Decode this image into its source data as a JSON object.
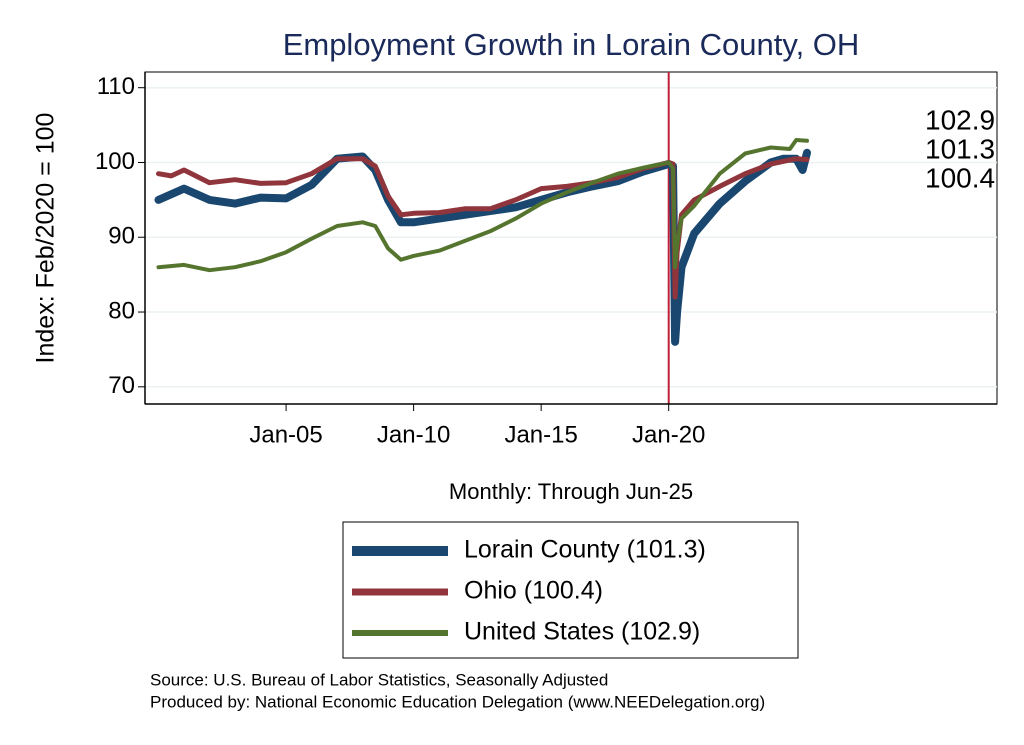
{
  "chart_data": {
    "type": "line",
    "title": "Employment Growth in Lorain  County, OH",
    "y_label": "Index: Feb/2020 = 100",
    "x_label": "Monthly: Through Jun-25",
    "source": [
      "Source: U.S. Bureau of Labor Statistics, Seasonally Adjusted",
      "Produced by: National Economic Education Delegation (www.NEEDelegation.org)"
    ],
    "xlim": [
      1999.47,
      2032.87
    ],
    "xticks": [
      {
        "value": 2005,
        "label": "Jan-05"
      },
      {
        "value": 2010,
        "label": "Jan-10"
      },
      {
        "value": 2015,
        "label": "Jan-15"
      },
      {
        "value": 2020,
        "label": "Jan-20"
      }
    ],
    "ylim": [
      67.7,
      112.1
    ],
    "yticks": [
      70,
      80,
      90,
      100,
      110
    ],
    "grid": true,
    "vline": {
      "value": 2020,
      "color": "#c0213a"
    },
    "series": [
      {
        "name": "Lorain  County (101.3)",
        "color": "#1a476f",
        "width": 8,
        "end_label": 101.3,
        "x": [
          2000,
          2001,
          2002,
          2003,
          2004,
          2005,
          2006,
          2007,
          2008,
          2008.5,
          2009,
          2009.5,
          2010,
          2011,
          2012,
          2013,
          2014,
          2015,
          2016,
          2017,
          2018,
          2019,
          2020,
          2020.17,
          2020.25,
          2020.33,
          2020.5,
          2021,
          2022,
          2023,
          2024,
          2024.5,
          2025,
          2025.25,
          2025.42
        ],
        "values": [
          95,
          96.5,
          95,
          94.5,
          95.3,
          95.2,
          97,
          100.5,
          100.8,
          99,
          95,
          92,
          92,
          92.5,
          93,
          93.5,
          94,
          95,
          96,
          96.8,
          97.5,
          98.8,
          99.8,
          99.5,
          76,
          80,
          86,
          90.5,
          94.5,
          97.5,
          100,
          100.5,
          100.5,
          99,
          101.3
        ]
      },
      {
        "name": "Ohio (100.4)",
        "color": "#90353b",
        "width": 5,
        "end_label": 100.4,
        "x": [
          2000,
          2000.5,
          2001,
          2002,
          2003,
          2004,
          2005,
          2006,
          2007,
          2008,
          2008.5,
          2009,
          2009.5,
          2010,
          2011,
          2012,
          2013,
          2014,
          2015,
          2016,
          2017,
          2018,
          2019,
          2020,
          2020.17,
          2020.25,
          2020.33,
          2020.5,
          2021,
          2022,
          2023,
          2024,
          2025,
          2025.42
        ],
        "values": [
          98.5,
          98.2,
          99,
          97.3,
          97.7,
          97.2,
          97.3,
          98.5,
          100.5,
          100.5,
          99.5,
          95.5,
          93,
          93.2,
          93.3,
          93.8,
          93.8,
          95,
          96.5,
          96.8,
          97.3,
          98,
          99.2,
          100,
          99.8,
          82,
          88,
          93,
          95,
          96.8,
          98.5,
          99.8,
          100.5,
          100.4
        ]
      },
      {
        "name": "United States (102.9)",
        "color": "#55752f",
        "width": 4,
        "end_label": 102.9,
        "x": [
          2000,
          2001,
          2002,
          2003,
          2004,
          2005,
          2006,
          2007,
          2008,
          2008.5,
          2009,
          2009.5,
          2010,
          2011,
          2012,
          2013,
          2014,
          2015,
          2016,
          2017,
          2018,
          2019,
          2020,
          2020.17,
          2020.25,
          2020.33,
          2020.5,
          2021,
          2022,
          2023,
          2024,
          2024.75,
          2025,
          2025.42
        ],
        "values": [
          86,
          86.3,
          85.6,
          86,
          86.8,
          88,
          89.8,
          91.5,
          92,
          91.5,
          88.5,
          87,
          87.5,
          88.2,
          89.5,
          90.8,
          92.5,
          94.5,
          96,
          97.3,
          98.5,
          99.3,
          100,
          99.2,
          86,
          89,
          92.5,
          94.2,
          98.5,
          101.2,
          102,
          101.8,
          103,
          102.9
        ]
      }
    ]
  }
}
